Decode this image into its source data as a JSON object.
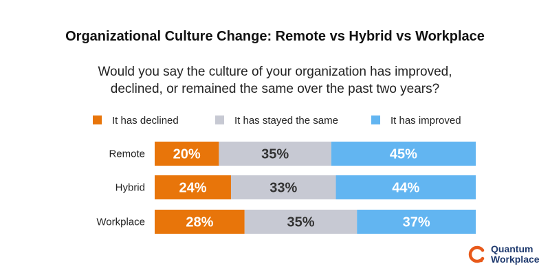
{
  "chart_data": {
    "type": "bar",
    "stacked": true,
    "orientation": "horizontal",
    "title": "Organizational Culture Change: Remote vs Hybrid vs Workplace",
    "subtitle": "Would you say the culture of your organization has improved, declined, or remained the same over the past two years?",
    "categories": [
      "Remote",
      "Hybrid",
      "Workplace"
    ],
    "series": [
      {
        "name": "It has declined",
        "values": [
          20,
          24,
          28
        ],
        "color": "#E8750A",
        "label_color": "#ffffff"
      },
      {
        "name": "It has stayed the same",
        "values": [
          35,
          33,
          35
        ],
        "color": "#C7C9D3",
        "label_color": "#333333"
      },
      {
        "name": "It has improved",
        "values": [
          45,
          44,
          37
        ],
        "color": "#62B5F1",
        "label_color": "#ffffff"
      }
    ],
    "value_suffix": "%",
    "legend_position": "top",
    "grid": false
  },
  "logo": {
    "line1": "Quantum",
    "line2": "Workplace",
    "color": "#E8591A"
  }
}
